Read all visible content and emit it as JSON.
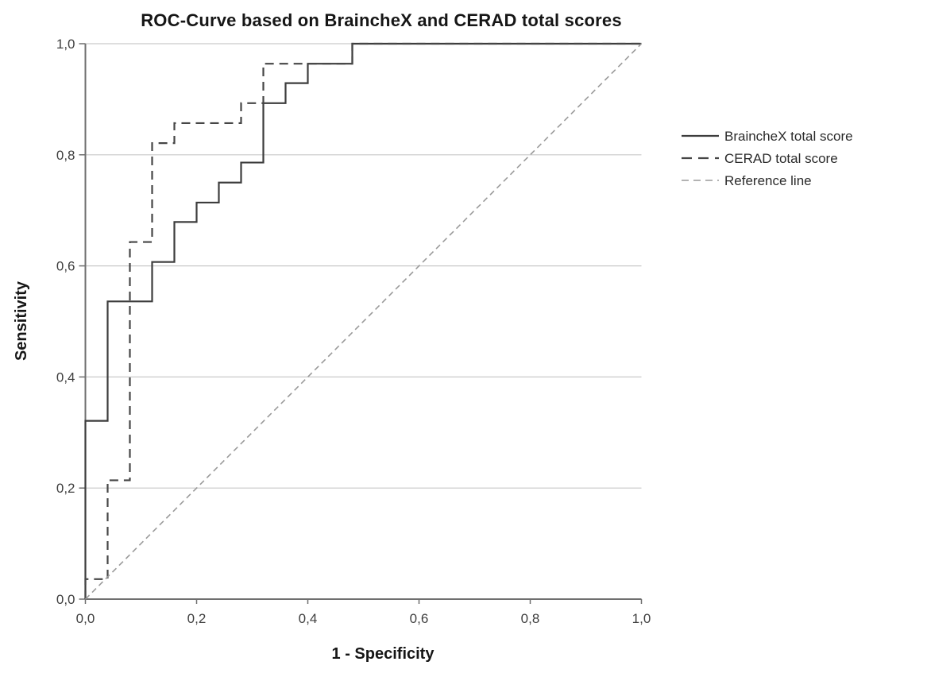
{
  "chart_data": {
    "type": "line",
    "subtype": "roc-step-curves",
    "title": "ROC-Curve based on BraincheX and CERAD total scores",
    "xlabel": "1 - Specificity",
    "ylabel": "Sensitivity",
    "xlim": [
      0,
      1
    ],
    "ylim": [
      0,
      1
    ],
    "x_ticks": [
      0,
      0.2,
      0.4,
      0.6,
      0.8,
      1.0
    ],
    "y_ticks": [
      0,
      0.2,
      0.4,
      0.6,
      0.8,
      1.0
    ],
    "x_tick_labels": [
      "0,0",
      "0,2",
      "0,4",
      "0,6",
      "0,8",
      "1,0"
    ],
    "y_tick_labels": [
      "0,0",
      "0,2",
      "0,4",
      "0,6",
      "0,8",
      "1,0"
    ],
    "grid": "horizontal-only",
    "legend_position": "right",
    "colors": {
      "axis": "#6f6f6f",
      "gridline": "#c9c9c9",
      "tick_text": "#3f3f3f",
      "title_text": "#161616"
    },
    "series": [
      {
        "name": "BraincheX total score",
        "line_style": "solid",
        "color": "#3d3d3d",
        "points": [
          [
            0,
            0
          ],
          [
            0,
            0.321
          ],
          [
            0.04,
            0.321
          ],
          [
            0.04,
            0.536
          ],
          [
            0.12,
            0.536
          ],
          [
            0.12,
            0.607
          ],
          [
            0.16,
            0.607
          ],
          [
            0.16,
            0.679
          ],
          [
            0.2,
            0.679
          ],
          [
            0.2,
            0.714
          ],
          [
            0.24,
            0.714
          ],
          [
            0.24,
            0.75
          ],
          [
            0.28,
            0.75
          ],
          [
            0.28,
            0.786
          ],
          [
            0.32,
            0.786
          ],
          [
            0.32,
            0.893
          ],
          [
            0.36,
            0.893
          ],
          [
            0.36,
            0.929
          ],
          [
            0.4,
            0.929
          ],
          [
            0.4,
            0.964
          ],
          [
            0.48,
            0.964
          ],
          [
            0.48,
            1.0
          ],
          [
            1.0,
            1.0
          ]
        ]
      },
      {
        "name": "CERAD total score",
        "line_style": "dashed",
        "color": "#464646",
        "points": [
          [
            0,
            0
          ],
          [
            0,
            0.036
          ],
          [
            0.04,
            0.036
          ],
          [
            0.04,
            0.214
          ],
          [
            0.08,
            0.214
          ],
          [
            0.08,
            0.643
          ],
          [
            0.12,
            0.643
          ],
          [
            0.12,
            0.821
          ],
          [
            0.16,
            0.821
          ],
          [
            0.16,
            0.857
          ],
          [
            0.28,
            0.857
          ],
          [
            0.28,
            0.893
          ],
          [
            0.32,
            0.893
          ],
          [
            0.32,
            0.964
          ],
          [
            0.48,
            0.964
          ],
          [
            0.48,
            1.0
          ],
          [
            1.0,
            1.0
          ]
        ]
      },
      {
        "name": "Reference line",
        "line_style": "light-dashed",
        "color": "#9a9a9a",
        "points": [
          [
            0,
            0
          ],
          [
            1,
            1
          ]
        ]
      }
    ]
  }
}
